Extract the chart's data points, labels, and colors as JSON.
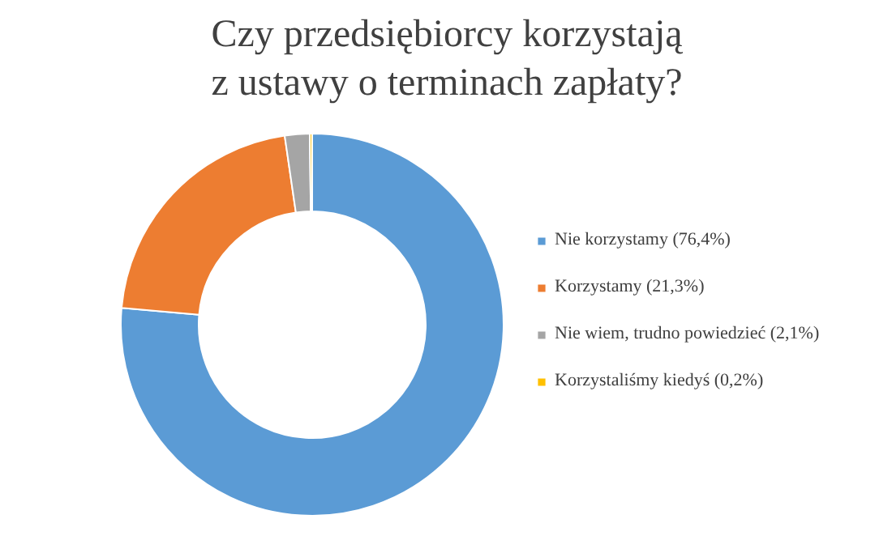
{
  "chart_data": {
    "type": "donut",
    "title": "Czy przedsiębiorcy korzystają\nz ustawy o terminach zapłaty?",
    "categories": [
      "Nie korzystamy (76,4%)",
      "Korzystamy (21,3%)",
      "Nie wiem, trudno powiedzieć (2,1%)",
      "Korzystaliśmy kiedyś (0,2%)"
    ],
    "values": [
      76.4,
      21.3,
      2.1,
      0.2
    ],
    "colors": [
      "#5b9bd5",
      "#ed7d31",
      "#a5a5a5",
      "#ffc000"
    ],
    "legend": "right"
  }
}
